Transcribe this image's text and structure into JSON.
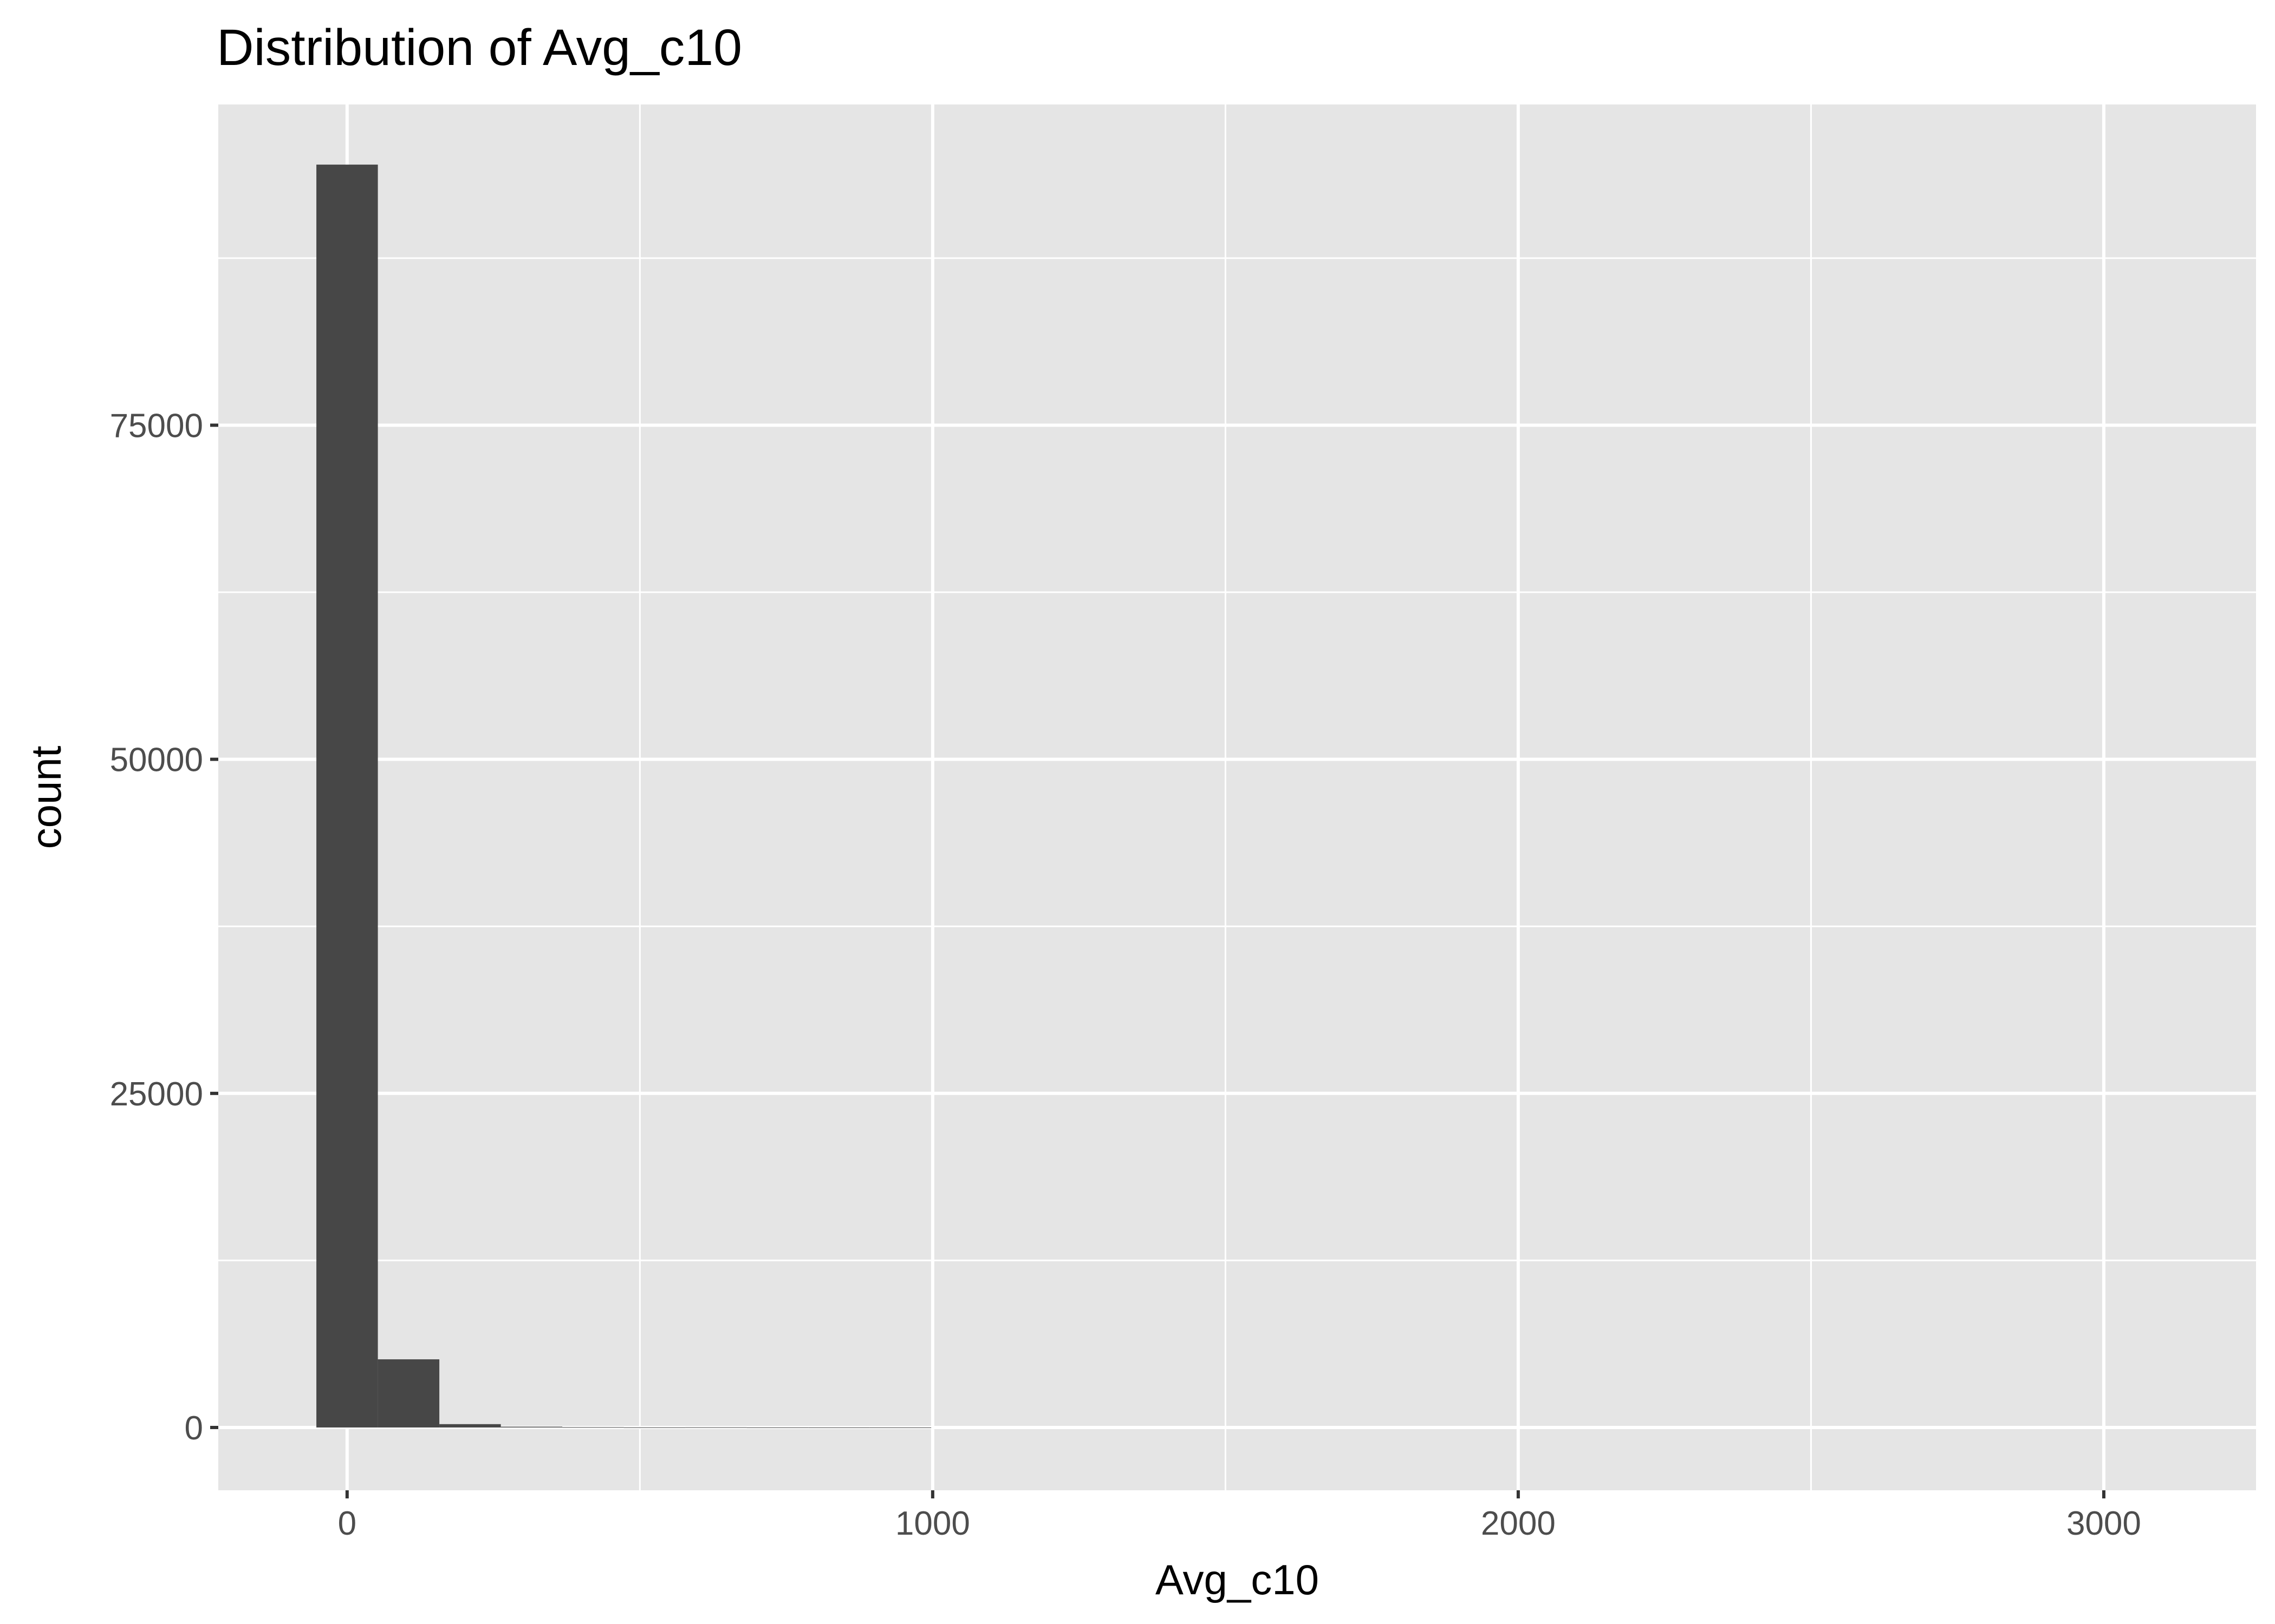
{
  "chart_data": {
    "type": "bar",
    "title": "Distribution of Avg_c10",
    "xlabel": "Avg_c10",
    "ylabel": "count",
    "xlim": [
      -220,
      3260
    ],
    "ylim": [
      -4700,
      99000
    ],
    "x_ticks": [
      0,
      1000,
      2000,
      3000
    ],
    "x_tick_labels": [
      "0",
      "1000",
      "2000",
      "3000"
    ],
    "x_minor_ticks": [
      500,
      1500,
      2500
    ],
    "y_ticks": [
      0,
      25000,
      50000,
      75000
    ],
    "y_tick_labels": [
      "0",
      "25000",
      "50000",
      "75000"
    ],
    "y_minor_ticks": [
      12500,
      37500,
      62500,
      87500
    ],
    "bin_width": 105,
    "bins": [
      {
        "x0": -52.5,
        "x1": 52.5,
        "count": 94500
      },
      {
        "x0": 52.5,
        "x1": 157.5,
        "count": 5100
      },
      {
        "x0": 157.5,
        "x1": 262.5,
        "count": 250
      },
      {
        "x0": 262.5,
        "x1": 367.5,
        "count": 60
      },
      {
        "x0": 367.5,
        "x1": 472.5,
        "count": 25
      },
      {
        "x0": 472.5,
        "x1": 577.5,
        "count": 10
      },
      {
        "x0": 577.5,
        "x1": 682.5,
        "count": 15
      },
      {
        "x0": 682.5,
        "x1": 787.5,
        "count": 5
      },
      {
        "x0": 787.5,
        "x1": 892.5,
        "count": 3
      },
      {
        "x0": 892.5,
        "x1": 997.5,
        "count": 2
      }
    ],
    "colors": {
      "bar": "#474747",
      "panel": "#e5e5e5",
      "grid": "#ffffff",
      "tick_text": "#4d4d4d",
      "tick_mark": "#333333"
    },
    "grid": true,
    "legend": "none"
  }
}
